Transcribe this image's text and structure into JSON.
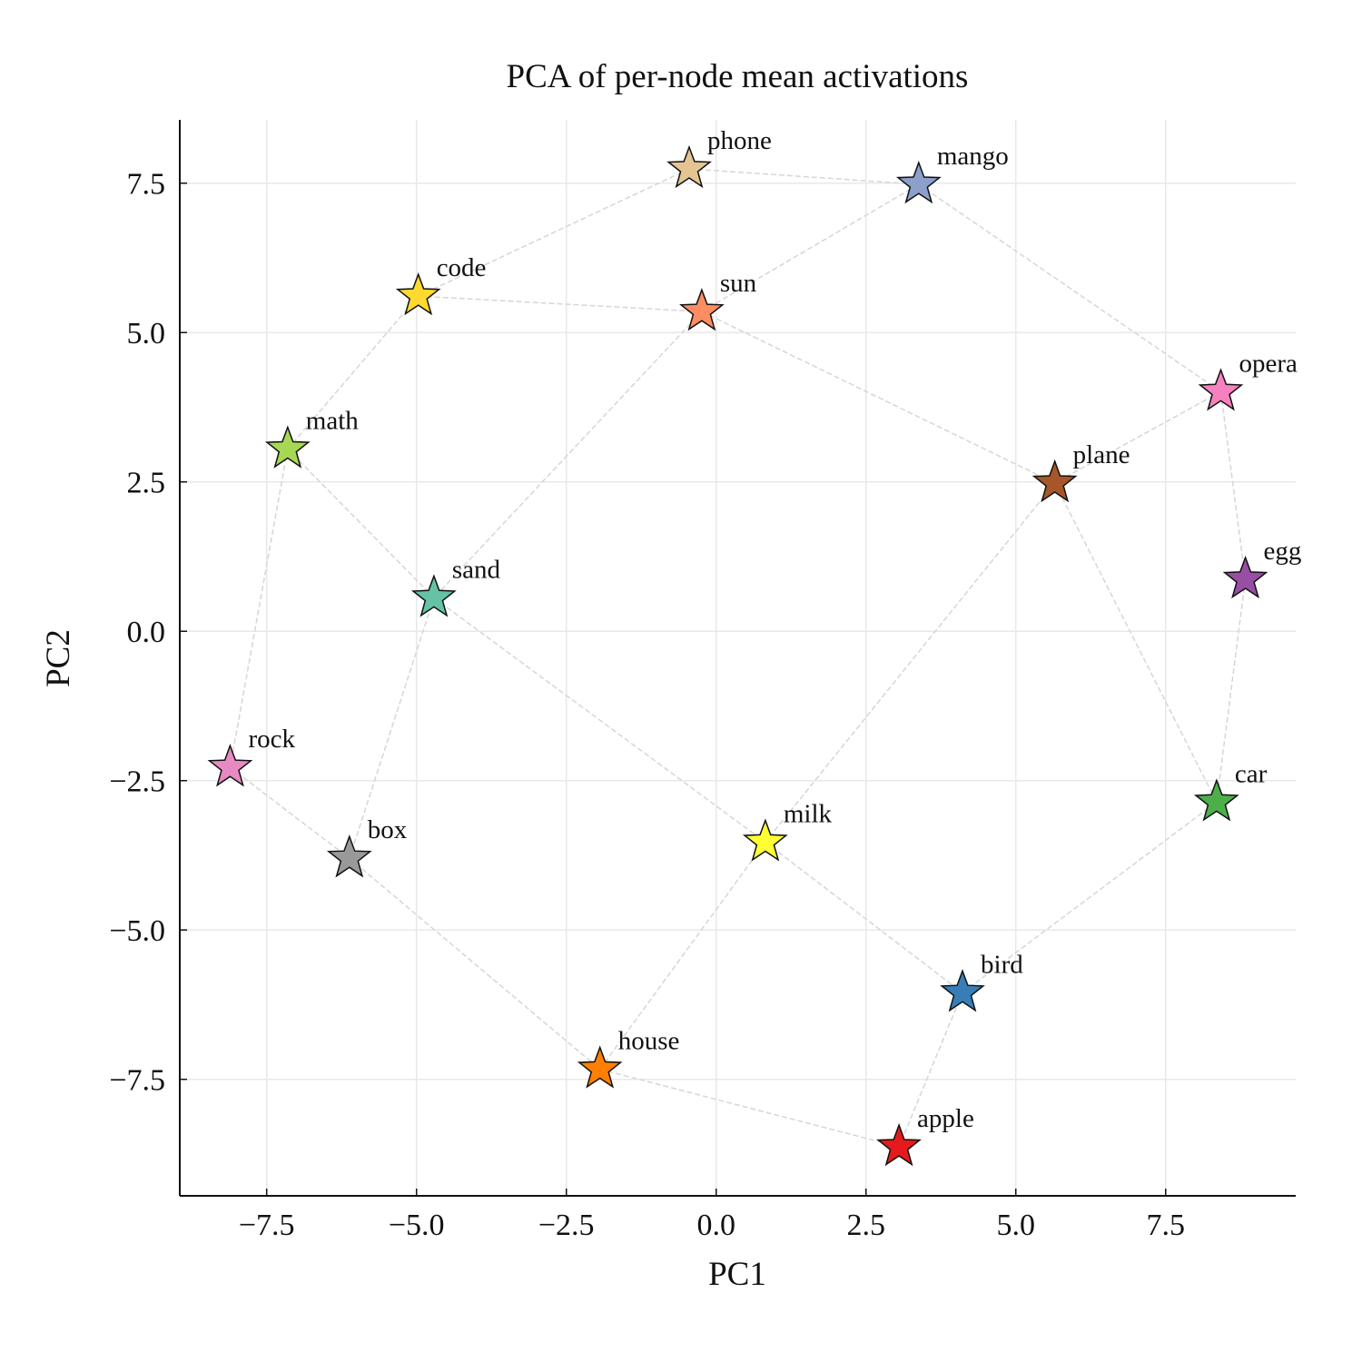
{
  "chart_data": {
    "type": "scatter",
    "title": "PCA of per-node mean activations",
    "xlabel": "PC1",
    "ylabel": "PC2",
    "labels": [
      "phone",
      "mango",
      "code",
      "sun",
      "opera",
      "math",
      "plane",
      "egg",
      "sand",
      "rock",
      "car",
      "milk",
      "box",
      "bird",
      "house",
      "apple"
    ],
    "x": [
      -0.45,
      3.38,
      -4.97,
      -0.24,
      8.42,
      -7.15,
      5.65,
      8.83,
      -4.71,
      -8.11,
      8.35,
      0.82,
      -6.12,
      4.11,
      -1.94,
      3.05
    ],
    "y": [
      7.74,
      7.48,
      5.61,
      5.35,
      4.01,
      3.05,
      2.48,
      0.87,
      0.56,
      -2.28,
      -2.86,
      -3.53,
      -3.8,
      -6.05,
      -7.33,
      -8.63
    ],
    "colors": [
      "#e5c494",
      "#8da0cb",
      "#ffd92f",
      "#fc8d62",
      "#f781bf",
      "#a6d854",
      "#a65628",
      "#984ea3",
      "#66c2a5",
      "#e78ac3",
      "#4daf4a",
      "#ffff33",
      "#999999",
      "#377eb8",
      "#ff7f00",
      "#e41a1c"
    ],
    "edges": [
      [
        0,
        1
      ],
      [
        0,
        2
      ],
      [
        2,
        3
      ],
      [
        3,
        1
      ],
      [
        2,
        5
      ],
      [
        5,
        8
      ],
      [
        5,
        9
      ],
      [
        3,
        8
      ],
      [
        3,
        6
      ],
      [
        1,
        4
      ],
      [
        4,
        6
      ],
      [
        4,
        7
      ],
      [
        7,
        10
      ],
      [
        6,
        10
      ],
      [
        6,
        11
      ],
      [
        8,
        11
      ],
      [
        8,
        12
      ],
      [
        9,
        12
      ],
      [
        12,
        14
      ],
      [
        14,
        11
      ],
      [
        14,
        15
      ],
      [
        11,
        13
      ],
      [
        13,
        10
      ],
      [
        13,
        15
      ]
    ],
    "xlim": [
      -8.95,
      9.67
    ],
    "ylim": [
      -9.45,
      8.56
    ],
    "xticks": [
      {
        "value": -7.5,
        "label": "−7.5"
      },
      {
        "value": -5,
        "label": "−5.0"
      },
      {
        "value": -2.5,
        "label": "−2.5"
      },
      {
        "value": 0,
        "label": "0.0"
      },
      2.5,
      {
        "value": 5,
        "label": "5.0"
      },
      7.5
    ],
    "yticks": [
      {
        "value": -7.5,
        "label": "−7.5"
      },
      {
        "value": -5,
        "label": "−5.0"
      },
      {
        "value": -2.5,
        "label": "−2.5"
      },
      {
        "value": 0,
        "label": "0.0"
      },
      2.5,
      {
        "value": 5,
        "label": "5.0"
      },
      7.5
    ],
    "grid": true
  }
}
